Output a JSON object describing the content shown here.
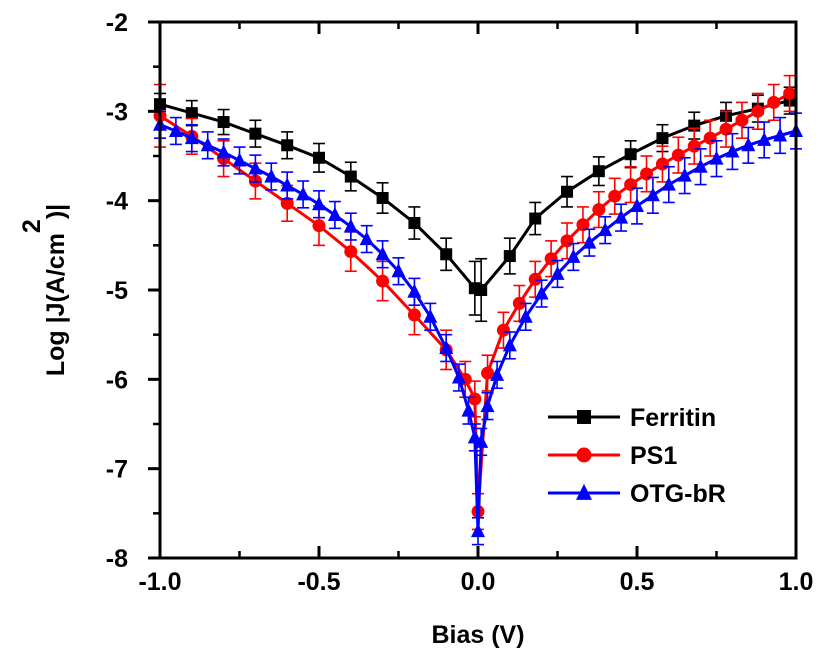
{
  "chart_data": {
    "type": "line",
    "xlabel": "Bias (V)",
    "ylabel_prefix": "Log |J(A/cm",
    "ylabel_sup": "2",
    "ylabel_suffix": ")|",
    "xlim": [
      -1.0,
      1.0
    ],
    "ylim": [
      -8,
      -2
    ],
    "xticks": [
      -1.0,
      -0.5,
      0.0,
      0.5,
      1.0
    ],
    "xtick_labels": [
      "-1.0",
      "-0.5",
      "0.0",
      "0.5",
      "1.0"
    ],
    "yticks": [
      -8,
      -7,
      -6,
      -5,
      -4,
      -3,
      -2
    ],
    "ytick_labels": [
      "-8",
      "-7",
      "-6",
      "-5",
      "-4",
      "-3",
      "-2"
    ],
    "legend_position": "bottom-right",
    "series": [
      {
        "name": "Ferritin",
        "color": "#000000",
        "marker": "square",
        "x": [
          -1.0,
          -0.9,
          -0.8,
          -0.7,
          -0.6,
          -0.5,
          -0.4,
          -0.3,
          -0.2,
          -0.1,
          -0.01,
          0.01,
          0.1,
          0.18,
          0.28,
          0.38,
          0.48,
          0.58,
          0.68,
          0.78,
          0.88,
          0.98
        ],
        "y": [
          -2.92,
          -3.02,
          -3.12,
          -3.25,
          -3.38,
          -3.52,
          -3.73,
          -3.97,
          -4.25,
          -4.6,
          -4.98,
          -5.0,
          -4.62,
          -4.2,
          -3.9,
          -3.67,
          -3.48,
          -3.3,
          -3.16,
          -3.05,
          -2.97,
          -2.88
        ],
        "err": [
          0.12,
          0.14,
          0.14,
          0.15,
          0.15,
          0.16,
          0.16,
          0.17,
          0.18,
          0.18,
          0.3,
          0.35,
          0.2,
          0.18,
          0.17,
          0.16,
          0.15,
          0.15,
          0.15,
          0.15,
          0.15,
          0.15
        ]
      },
      {
        "name": "PS1",
        "color": "#ff0000",
        "marker": "circle",
        "x": [
          -1.0,
          -0.9,
          -0.8,
          -0.7,
          -0.6,
          -0.5,
          -0.4,
          -0.3,
          -0.2,
          -0.1,
          -0.04,
          -0.01,
          0.0,
          0.03,
          0.08,
          0.13,
          0.18,
          0.23,
          0.28,
          0.33,
          0.38,
          0.43,
          0.48,
          0.53,
          0.58,
          0.63,
          0.68,
          0.73,
          0.78,
          0.83,
          0.88,
          0.93,
          0.98
        ],
        "y": [
          -3.05,
          -3.28,
          -3.53,
          -3.78,
          -4.03,
          -4.28,
          -4.57,
          -4.9,
          -5.28,
          -5.67,
          -6.0,
          -6.22,
          -7.48,
          -5.93,
          -5.45,
          -5.15,
          -4.88,
          -4.65,
          -4.45,
          -4.27,
          -4.1,
          -3.95,
          -3.82,
          -3.7,
          -3.59,
          -3.49,
          -3.39,
          -3.3,
          -3.2,
          -3.1,
          -3.0,
          -2.9,
          -2.8
        ],
        "err": [
          0.35,
          0.2,
          0.2,
          0.2,
          0.2,
          0.22,
          0.22,
          0.22,
          0.22,
          0.22,
          0.2,
          0.2,
          0.2,
          0.2,
          0.2,
          0.2,
          0.2,
          0.2,
          0.2,
          0.2,
          0.2,
          0.2,
          0.2,
          0.2,
          0.2,
          0.2,
          0.2,
          0.2,
          0.2,
          0.2,
          0.2,
          0.2,
          0.2
        ]
      },
      {
        "name": "OTG-bR",
        "color": "#0000ff",
        "marker": "triangle",
        "x": [
          -1.0,
          -0.95,
          -0.9,
          -0.85,
          -0.8,
          -0.75,
          -0.7,
          -0.65,
          -0.6,
          -0.55,
          -0.5,
          -0.45,
          -0.4,
          -0.35,
          -0.3,
          -0.25,
          -0.2,
          -0.15,
          -0.1,
          -0.06,
          -0.03,
          -0.01,
          0.0,
          0.01,
          0.03,
          0.06,
          0.1,
          0.15,
          0.2,
          0.25,
          0.3,
          0.35,
          0.4,
          0.45,
          0.5,
          0.55,
          0.6,
          0.65,
          0.7,
          0.75,
          0.8,
          0.85,
          0.9,
          0.95,
          1.0
        ],
        "y": [
          -3.15,
          -3.22,
          -3.3,
          -3.38,
          -3.46,
          -3.55,
          -3.64,
          -3.73,
          -3.83,
          -3.93,
          -4.04,
          -4.16,
          -4.29,
          -4.43,
          -4.6,
          -4.79,
          -5.02,
          -5.3,
          -5.65,
          -5.98,
          -6.35,
          -6.65,
          -7.7,
          -6.7,
          -6.3,
          -5.95,
          -5.62,
          -5.3,
          -5.04,
          -4.82,
          -4.63,
          -4.47,
          -4.33,
          -4.19,
          -4.06,
          -3.94,
          -3.82,
          -3.72,
          -3.62,
          -3.53,
          -3.45,
          -3.38,
          -3.32,
          -3.27,
          -3.22
        ],
        "err": [
          0.15,
          0.15,
          0.15,
          0.15,
          0.15,
          0.15,
          0.15,
          0.15,
          0.15,
          0.15,
          0.15,
          0.15,
          0.15,
          0.15,
          0.15,
          0.15,
          0.15,
          0.15,
          0.15,
          0.15,
          0.15,
          0.15,
          0.15,
          0.15,
          0.15,
          0.15,
          0.15,
          0.15,
          0.15,
          0.15,
          0.15,
          0.15,
          0.15,
          0.15,
          0.2,
          0.2,
          0.2,
          0.2,
          0.2,
          0.2,
          0.2,
          0.2,
          0.2,
          0.2,
          0.2
        ]
      }
    ]
  }
}
